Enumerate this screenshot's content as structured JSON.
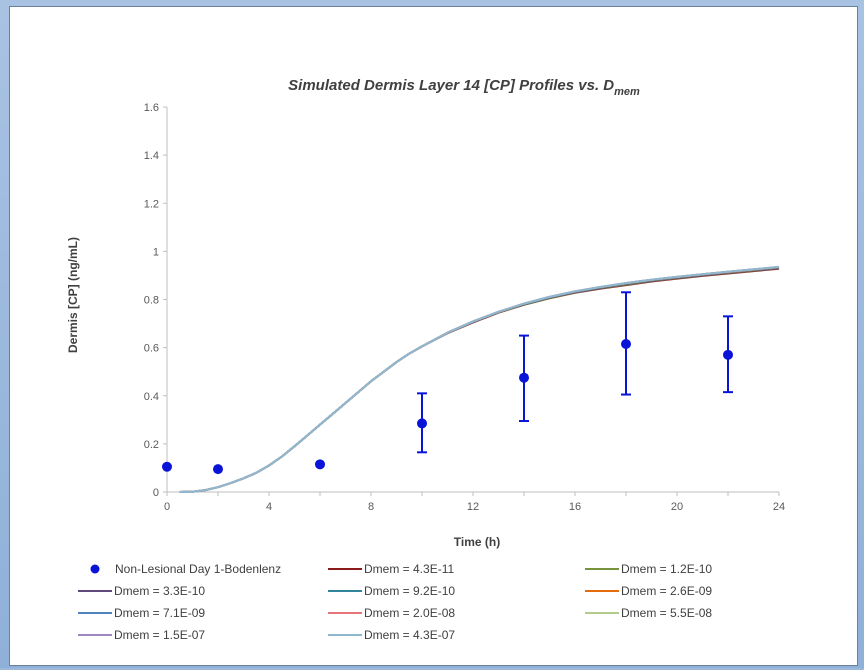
{
  "chart_data": {
    "type": "line",
    "title": "Simulated Dermis Layer 14 [CP] Profiles vs. D",
    "title_subscript": "mem",
    "xlabel": "Time (h)",
    "ylabel": "Dermis [CP] (ng/mL)",
    "xlim": [
      0,
      24
    ],
    "ylim": [
      0,
      1.6
    ],
    "xticks": [
      0,
      4,
      8,
      12,
      16,
      20,
      24
    ],
    "xtick_labels": [
      "0",
      "4",
      "8",
      "12",
      "16",
      "20",
      "24"
    ],
    "yticks": [
      0,
      0.2,
      0.4,
      0.6,
      0.8,
      1.0,
      1.2,
      1.4,
      1.6
    ],
    "ytick_labels": [
      "0",
      "0.2",
      "0.4",
      "0.6",
      "0.8",
      "1",
      "1.2",
      "1.4",
      "1.6"
    ],
    "grid": false,
    "legend_position": "bottom",
    "observed": {
      "name": "Non-Lesional Day 1-Bodenlenz",
      "color": "#0a14d8",
      "points": [
        {
          "x": 0,
          "y": 0.105
        },
        {
          "x": 2,
          "y": 0.095
        },
        {
          "x": 6,
          "y": 0.115
        },
        {
          "x": 10,
          "y": 0.285,
          "err_low": 0.165,
          "err_high": 0.41
        },
        {
          "x": 14,
          "y": 0.475,
          "err_low": 0.295,
          "err_high": 0.65
        },
        {
          "x": 18,
          "y": 0.615,
          "err_low": 0.405,
          "err_high": 0.83
        },
        {
          "x": 22,
          "y": 0.57,
          "err_low": 0.415,
          "err_high": 0.73
        }
      ]
    },
    "x": [
      0.5,
      1,
      1.5,
      2,
      2.5,
      3,
      3.5,
      4,
      4.5,
      5,
      5.5,
      6,
      6.5,
      7,
      7.5,
      8,
      8.5,
      9,
      9.5,
      10,
      11,
      12,
      13,
      14,
      15,
      16,
      17,
      18,
      19,
      20,
      21,
      22,
      23,
      24
    ],
    "series": [
      {
        "name": "Dmem = 4.3E-11",
        "color": "#8b1a1a",
        "values": [
          0,
          0.001,
          0.008,
          0.02,
          0.037,
          0.057,
          0.08,
          0.11,
          0.147,
          0.19,
          0.235,
          0.28,
          0.325,
          0.37,
          0.415,
          0.46,
          0.5,
          0.54,
          0.575,
          0.605,
          0.66,
          0.705,
          0.745,
          0.778,
          0.805,
          0.828,
          0.845,
          0.86,
          0.875,
          0.887,
          0.898,
          0.908,
          0.918,
          0.928
        ]
      },
      {
        "name": "Dmem = 1.2E-10",
        "color": "#77933c",
        "values": [
          0,
          0.001,
          0.008,
          0.02,
          0.037,
          0.057,
          0.08,
          0.11,
          0.147,
          0.19,
          0.235,
          0.28,
          0.325,
          0.37,
          0.415,
          0.46,
          0.5,
          0.54,
          0.575,
          0.605,
          0.661,
          0.706,
          0.746,
          0.779,
          0.806,
          0.829,
          0.847,
          0.862,
          0.877,
          0.889,
          0.9,
          0.91,
          0.92,
          0.93
        ]
      },
      {
        "name": "Dmem = 3.3E-10",
        "color": "#604a7b",
        "values": [
          0,
          0.001,
          0.008,
          0.02,
          0.037,
          0.057,
          0.08,
          0.11,
          0.147,
          0.19,
          0.235,
          0.28,
          0.325,
          0.37,
          0.415,
          0.46,
          0.5,
          0.54,
          0.575,
          0.605,
          0.661,
          0.707,
          0.747,
          0.78,
          0.808,
          0.83,
          0.848,
          0.864,
          0.878,
          0.89,
          0.901,
          0.911,
          0.921,
          0.931
        ]
      },
      {
        "name": "Dmem = 9.2E-10",
        "color": "#31859c",
        "values": [
          0,
          0.001,
          0.008,
          0.02,
          0.037,
          0.057,
          0.08,
          0.11,
          0.147,
          0.19,
          0.235,
          0.28,
          0.325,
          0.37,
          0.415,
          0.46,
          0.5,
          0.54,
          0.575,
          0.605,
          0.662,
          0.708,
          0.748,
          0.781,
          0.809,
          0.832,
          0.85,
          0.866,
          0.88,
          0.892,
          0.903,
          0.913,
          0.923,
          0.933
        ]
      },
      {
        "name": "Dmem = 2.6E-09",
        "color": "#e46c0a",
        "values": [
          0,
          0.001,
          0.008,
          0.02,
          0.037,
          0.057,
          0.08,
          0.11,
          0.147,
          0.19,
          0.235,
          0.28,
          0.325,
          0.37,
          0.415,
          0.46,
          0.5,
          0.54,
          0.575,
          0.605,
          0.662,
          0.708,
          0.748,
          0.782,
          0.81,
          0.833,
          0.851,
          0.867,
          0.881,
          0.893,
          0.904,
          0.914,
          0.924,
          0.934
        ]
      },
      {
        "name": "Dmem = 7.1E-09",
        "color": "#4f81bd",
        "values": [
          0,
          0.001,
          0.008,
          0.02,
          0.037,
          0.057,
          0.08,
          0.11,
          0.147,
          0.19,
          0.235,
          0.28,
          0.325,
          0.37,
          0.415,
          0.46,
          0.5,
          0.54,
          0.575,
          0.605,
          0.662,
          0.709,
          0.749,
          0.782,
          0.81,
          0.833,
          0.852,
          0.868,
          0.882,
          0.894,
          0.905,
          0.915,
          0.925,
          0.935
        ]
      },
      {
        "name": "Dmem = 2.0E-08",
        "color": "#e6747a",
        "values": [
          0,
          0.001,
          0.008,
          0.02,
          0.037,
          0.057,
          0.08,
          0.11,
          0.147,
          0.19,
          0.235,
          0.28,
          0.325,
          0.37,
          0.415,
          0.46,
          0.5,
          0.54,
          0.575,
          0.605,
          0.662,
          0.709,
          0.749,
          0.783,
          0.811,
          0.834,
          0.852,
          0.868,
          0.882,
          0.894,
          0.905,
          0.915,
          0.925,
          0.935
        ]
      },
      {
        "name": "Dmem = 5.5E-08",
        "color": "#b4cc8a",
        "values": [
          0,
          0.001,
          0.008,
          0.02,
          0.037,
          0.057,
          0.08,
          0.11,
          0.147,
          0.19,
          0.235,
          0.28,
          0.325,
          0.37,
          0.415,
          0.46,
          0.5,
          0.54,
          0.575,
          0.605,
          0.662,
          0.709,
          0.749,
          0.783,
          0.811,
          0.834,
          0.852,
          0.868,
          0.882,
          0.894,
          0.905,
          0.915,
          0.925,
          0.935
        ]
      },
      {
        "name": "Dmem = 1.5E-07",
        "color": "#9d88c0",
        "values": [
          0,
          0.001,
          0.008,
          0.02,
          0.037,
          0.057,
          0.08,
          0.11,
          0.147,
          0.19,
          0.235,
          0.28,
          0.325,
          0.37,
          0.415,
          0.46,
          0.5,
          0.54,
          0.575,
          0.605,
          0.662,
          0.709,
          0.749,
          0.783,
          0.811,
          0.834,
          0.852,
          0.868,
          0.882,
          0.894,
          0.905,
          0.915,
          0.925,
          0.935
        ]
      },
      {
        "name": "Dmem = 4.3E-07",
        "color": "#8fb8cf",
        "values": [
          0,
          0.001,
          0.008,
          0.02,
          0.037,
          0.057,
          0.08,
          0.11,
          0.147,
          0.19,
          0.235,
          0.28,
          0.325,
          0.37,
          0.415,
          0.46,
          0.5,
          0.54,
          0.575,
          0.605,
          0.662,
          0.709,
          0.749,
          0.783,
          0.811,
          0.834,
          0.852,
          0.868,
          0.882,
          0.894,
          0.905,
          0.915,
          0.925,
          0.936
        ]
      }
    ]
  }
}
